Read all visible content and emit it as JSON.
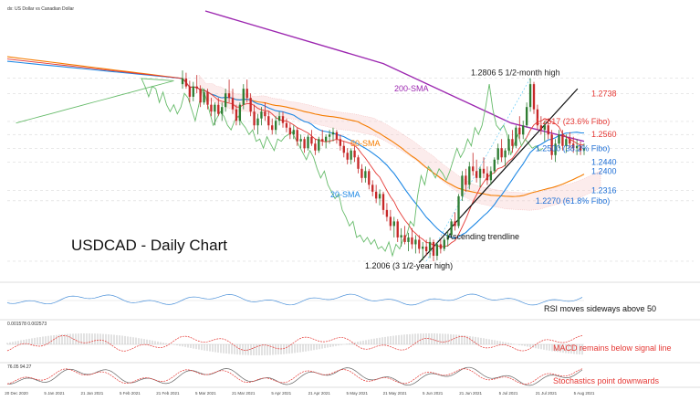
{
  "header": {
    "symbol_text": "dx: US Dollar vs Canadian Dollar"
  },
  "chart_data": {
    "type": "candlestick",
    "title": "USDCAD - Daily Chart",
    "ylim": [
      1.195,
      1.31
    ],
    "x_ticks": [
      "20 Dec 2020",
      "5 Jan 2021",
      "21 Jan 2021",
      "5 Feb 2021",
      "21 Feb 2021",
      "5 Mar 2021",
      "21 Mar 2021",
      "5 Apr 2021",
      "21 Apr 2021",
      "5 May 2021",
      "21 May 2021",
      "5 Jun 2021",
      "21 Jun 2021",
      "5 Jul 2021",
      "21 Jul 2021",
      "5 Aug 2021"
    ],
    "candles": [
      [
        1.278,
        1.284,
        1.276,
        1.2805
      ],
      [
        1.2805,
        1.283,
        1.276,
        1.277
      ],
      [
        1.277,
        1.2795,
        1.27,
        1.2725
      ],
      [
        1.2725,
        1.279,
        1.2705,
        1.277
      ],
      [
        1.277,
        1.282,
        1.274,
        1.276
      ],
      [
        1.276,
        1.2775,
        1.268,
        1.27
      ],
      [
        1.27,
        1.276,
        1.269,
        1.2745
      ],
      [
        1.2745,
        1.276,
        1.267,
        1.269
      ],
      [
        1.269,
        1.272,
        1.264,
        1.266
      ],
      [
        1.266,
        1.27,
        1.26,
        1.269
      ],
      [
        1.269,
        1.272,
        1.264,
        1.265
      ],
      [
        1.265,
        1.27,
        1.262,
        1.268
      ],
      [
        1.268,
        1.276,
        1.266,
        1.274
      ],
      [
        1.274,
        1.28,
        1.27,
        1.272
      ],
      [
        1.272,
        1.276,
        1.265,
        1.267
      ],
      [
        1.267,
        1.269,
        1.26,
        1.262
      ],
      [
        1.262,
        1.27,
        1.26,
        1.269
      ],
      [
        1.269,
        1.278,
        1.267,
        1.276
      ],
      [
        1.276,
        1.28,
        1.27,
        1.272
      ],
      [
        1.272,
        1.274,
        1.264,
        1.266
      ],
      [
        1.266,
        1.269,
        1.258,
        1.26
      ],
      [
        1.26,
        1.265,
        1.256,
        1.263
      ],
      [
        1.263,
        1.268,
        1.26,
        1.266
      ],
      [
        1.266,
        1.27,
        1.262,
        1.264
      ],
      [
        1.264,
        1.266,
        1.258,
        1.26
      ],
      [
        1.26,
        1.263,
        1.256,
        1.258
      ],
      [
        1.258,
        1.264,
        1.256,
        1.262
      ],
      [
        1.262,
        1.266,
        1.26,
        1.264
      ],
      [
        1.264,
        1.266,
        1.259,
        1.261
      ],
      [
        1.261,
        1.263,
        1.257,
        1.259
      ],
      [
        1.259,
        1.261,
        1.254,
        1.256
      ],
      [
        1.256,
        1.26,
        1.254,
        1.258
      ],
      [
        1.258,
        1.259,
        1.251,
        1.253
      ],
      [
        1.253,
        1.256,
        1.25,
        1.254
      ],
      [
        1.254,
        1.255,
        1.248,
        1.25
      ],
      [
        1.25,
        1.256,
        1.249,
        1.255
      ],
      [
        1.255,
        1.258,
        1.251,
        1.252
      ],
      [
        1.252,
        1.254,
        1.247,
        1.249
      ],
      [
        1.249,
        1.255,
        1.248,
        1.254
      ],
      [
        1.254,
        1.258,
        1.251,
        1.253
      ],
      [
        1.253,
        1.256,
        1.25,
        1.255
      ],
      [
        1.255,
        1.258,
        1.252,
        1.256
      ],
      [
        1.256,
        1.259,
        1.253,
        1.257
      ],
      [
        1.257,
        1.258,
        1.252,
        1.254
      ],
      [
        1.254,
        1.256,
        1.249,
        1.251
      ],
      [
        1.251,
        1.253,
        1.246,
        1.248
      ],
      [
        1.248,
        1.25,
        1.243,
        1.245
      ],
      [
        1.245,
        1.25,
        1.243,
        1.249
      ],
      [
        1.249,
        1.251,
        1.244,
        1.246
      ],
      [
        1.246,
        1.247,
        1.239,
        1.241
      ],
      [
        1.241,
        1.243,
        1.235,
        1.237
      ],
      [
        1.237,
        1.242,
        1.235,
        1.24
      ],
      [
        1.24,
        1.241,
        1.232,
        1.234
      ],
      [
        1.234,
        1.236,
        1.229,
        1.231
      ],
      [
        1.231,
        1.234,
        1.226,
        1.228
      ],
      [
        1.228,
        1.232,
        1.225,
        1.23
      ],
      [
        1.23,
        1.231,
        1.221,
        1.223
      ],
      [
        1.223,
        1.226,
        1.218,
        1.22
      ],
      [
        1.22,
        1.223,
        1.214,
        1.216
      ],
      [
        1.216,
        1.22,
        1.211,
        1.218
      ],
      [
        1.218,
        1.219,
        1.209,
        1.211
      ],
      [
        1.211,
        1.215,
        1.207,
        1.212
      ],
      [
        1.212,
        1.216,
        1.208,
        1.209
      ],
      [
        1.209,
        1.213,
        1.205,
        1.211
      ],
      [
        1.211,
        1.215,
        1.206,
        1.208
      ],
      [
        1.208,
        1.212,
        1.204,
        1.21
      ],
      [
        1.21,
        1.212,
        1.204,
        1.206
      ],
      [
        1.206,
        1.209,
        1.201,
        1.207
      ],
      [
        1.207,
        1.21,
        1.203,
        1.205
      ],
      [
        1.205,
        1.211,
        1.202,
        1.209
      ],
      [
        1.209,
        1.21,
        1.2006,
        1.203
      ],
      [
        1.203,
        1.209,
        1.201,
        1.208
      ],
      [
        1.208,
        1.21,
        1.204,
        1.206
      ],
      [
        1.206,
        1.211,
        1.205,
        1.21
      ],
      [
        1.21,
        1.214,
        1.207,
        1.212
      ],
      [
        1.212,
        1.219,
        1.211,
        1.218
      ],
      [
        1.218,
        1.222,
        1.214,
        1.216
      ],
      [
        1.216,
        1.23,
        1.215,
        1.229
      ],
      [
        1.229,
        1.24,
        1.227,
        1.238
      ],
      [
        1.238,
        1.241,
        1.231,
        1.234
      ],
      [
        1.234,
        1.244,
        1.232,
        1.242
      ],
      [
        1.242,
        1.248,
        1.238,
        1.24
      ],
      [
        1.24,
        1.245,
        1.235,
        1.237
      ],
      [
        1.237,
        1.242,
        1.233,
        1.241
      ],
      [
        1.241,
        1.246,
        1.237,
        1.239
      ],
      [
        1.239,
        1.242,
        1.234,
        1.236
      ],
      [
        1.236,
        1.242,
        1.234,
        1.24
      ],
      [
        1.24,
        1.246,
        1.239,
        1.245
      ],
      [
        1.245,
        1.252,
        1.243,
        1.25
      ],
      [
        1.25,
        1.254,
        1.244,
        1.246
      ],
      [
        1.246,
        1.25,
        1.242,
        1.249
      ],
      [
        1.249,
        1.256,
        1.247,
        1.254
      ],
      [
        1.254,
        1.258,
        1.248,
        1.251
      ],
      [
        1.251,
        1.26,
        1.25,
        1.259
      ],
      [
        1.259,
        1.264,
        1.254,
        1.256
      ],
      [
        1.256,
        1.262,
        1.254,
        1.26
      ],
      [
        1.26,
        1.27,
        1.259,
        1.268
      ],
      [
        1.268,
        1.2806,
        1.266,
        1.278
      ],
      [
        1.278,
        1.279,
        1.265,
        1.267
      ],
      [
        1.267,
        1.269,
        1.258,
        1.26
      ],
      [
        1.26,
        1.264,
        1.256,
        1.258
      ],
      [
        1.258,
        1.262,
        1.253,
        1.26
      ],
      [
        1.26,
        1.263,
        1.254,
        1.256
      ],
      [
        1.256,
        1.258,
        1.245,
        1.247
      ],
      [
        1.247,
        1.254,
        1.244,
        1.252
      ],
      [
        1.252,
        1.258,
        1.25,
        1.256
      ],
      [
        1.256,
        1.258,
        1.249,
        1.251
      ],
      [
        1.251,
        1.256,
        1.248,
        1.254
      ],
      [
        1.254,
        1.257,
        1.25,
        1.252
      ],
      [
        1.252,
        1.255,
        1.248,
        1.25
      ],
      [
        1.25,
        1.254,
        1.247,
        1.251
      ],
      [
        1.251,
        1.253,
        1.247,
        1.249
      ],
      [
        1.249,
        1.252,
        1.247,
        1.25
      ]
    ],
    "levels": [
      {
        "value": 1.2806,
        "text": "1.2806 5 1/2-month high",
        "color": "#222222"
      },
      {
        "value": 1.2738,
        "text": "1.2738",
        "color": "#e53935"
      },
      {
        "value": 1.2617,
        "text": "1.2617 (23.6% Fibo)",
        "color": "#e53935"
      },
      {
        "value": 1.256,
        "text": "1.2560",
        "color": "#e53935"
      },
      {
        "value": 1.25,
        "text": "1.2500 (38.2% Fibo)",
        "color": "#1e6fd6"
      },
      {
        "value": 1.244,
        "text": "1.2440",
        "color": "#1e6fd6"
      },
      {
        "value": 1.24,
        "text": "1.2400",
        "color": "#1e6fd6"
      },
      {
        "value": 1.2316,
        "text": "1.2316",
        "color": "#1e6fd6"
      },
      {
        "value": 1.227,
        "text": "1.2270 (61.8% Fibo)",
        "color": "#1e6fd6"
      }
    ],
    "annotations": [
      {
        "text": "200-SMA",
        "color": "#9c27b0"
      },
      {
        "text": "50-SMA",
        "color": "#f57c00"
      },
      {
        "text": "20-SMA",
        "color": "#1e88e5"
      },
      {
        "text": "Ascending trendline",
        "color": "#111111"
      },
      {
        "text": "1.2006 (3 1/2-year high)",
        "color": "#111111"
      }
    ],
    "subpanels": [
      {
        "name": "RSI",
        "header": "",
        "note": "RSI moves sideways above 50",
        "note_color": "#111111"
      },
      {
        "name": "MACD",
        "header": "0.001578 0.002573",
        "note": "MACD remains below signal line",
        "note_color": "#e53935"
      },
      {
        "name": "Stochastics",
        "header": "76.05 94.27",
        "note": "Stochastics point downwards",
        "note_color": "#e53935"
      }
    ],
    "colors": {
      "up": "#2e7d32",
      "down": "#c62828",
      "sma200": "#9c27b0",
      "sma50": "#f57c00",
      "sma20": "#1e88e5",
      "kijun": "#e53935",
      "chikou": "#66bb6a",
      "fibo": "#4fc3f7"
    }
  }
}
